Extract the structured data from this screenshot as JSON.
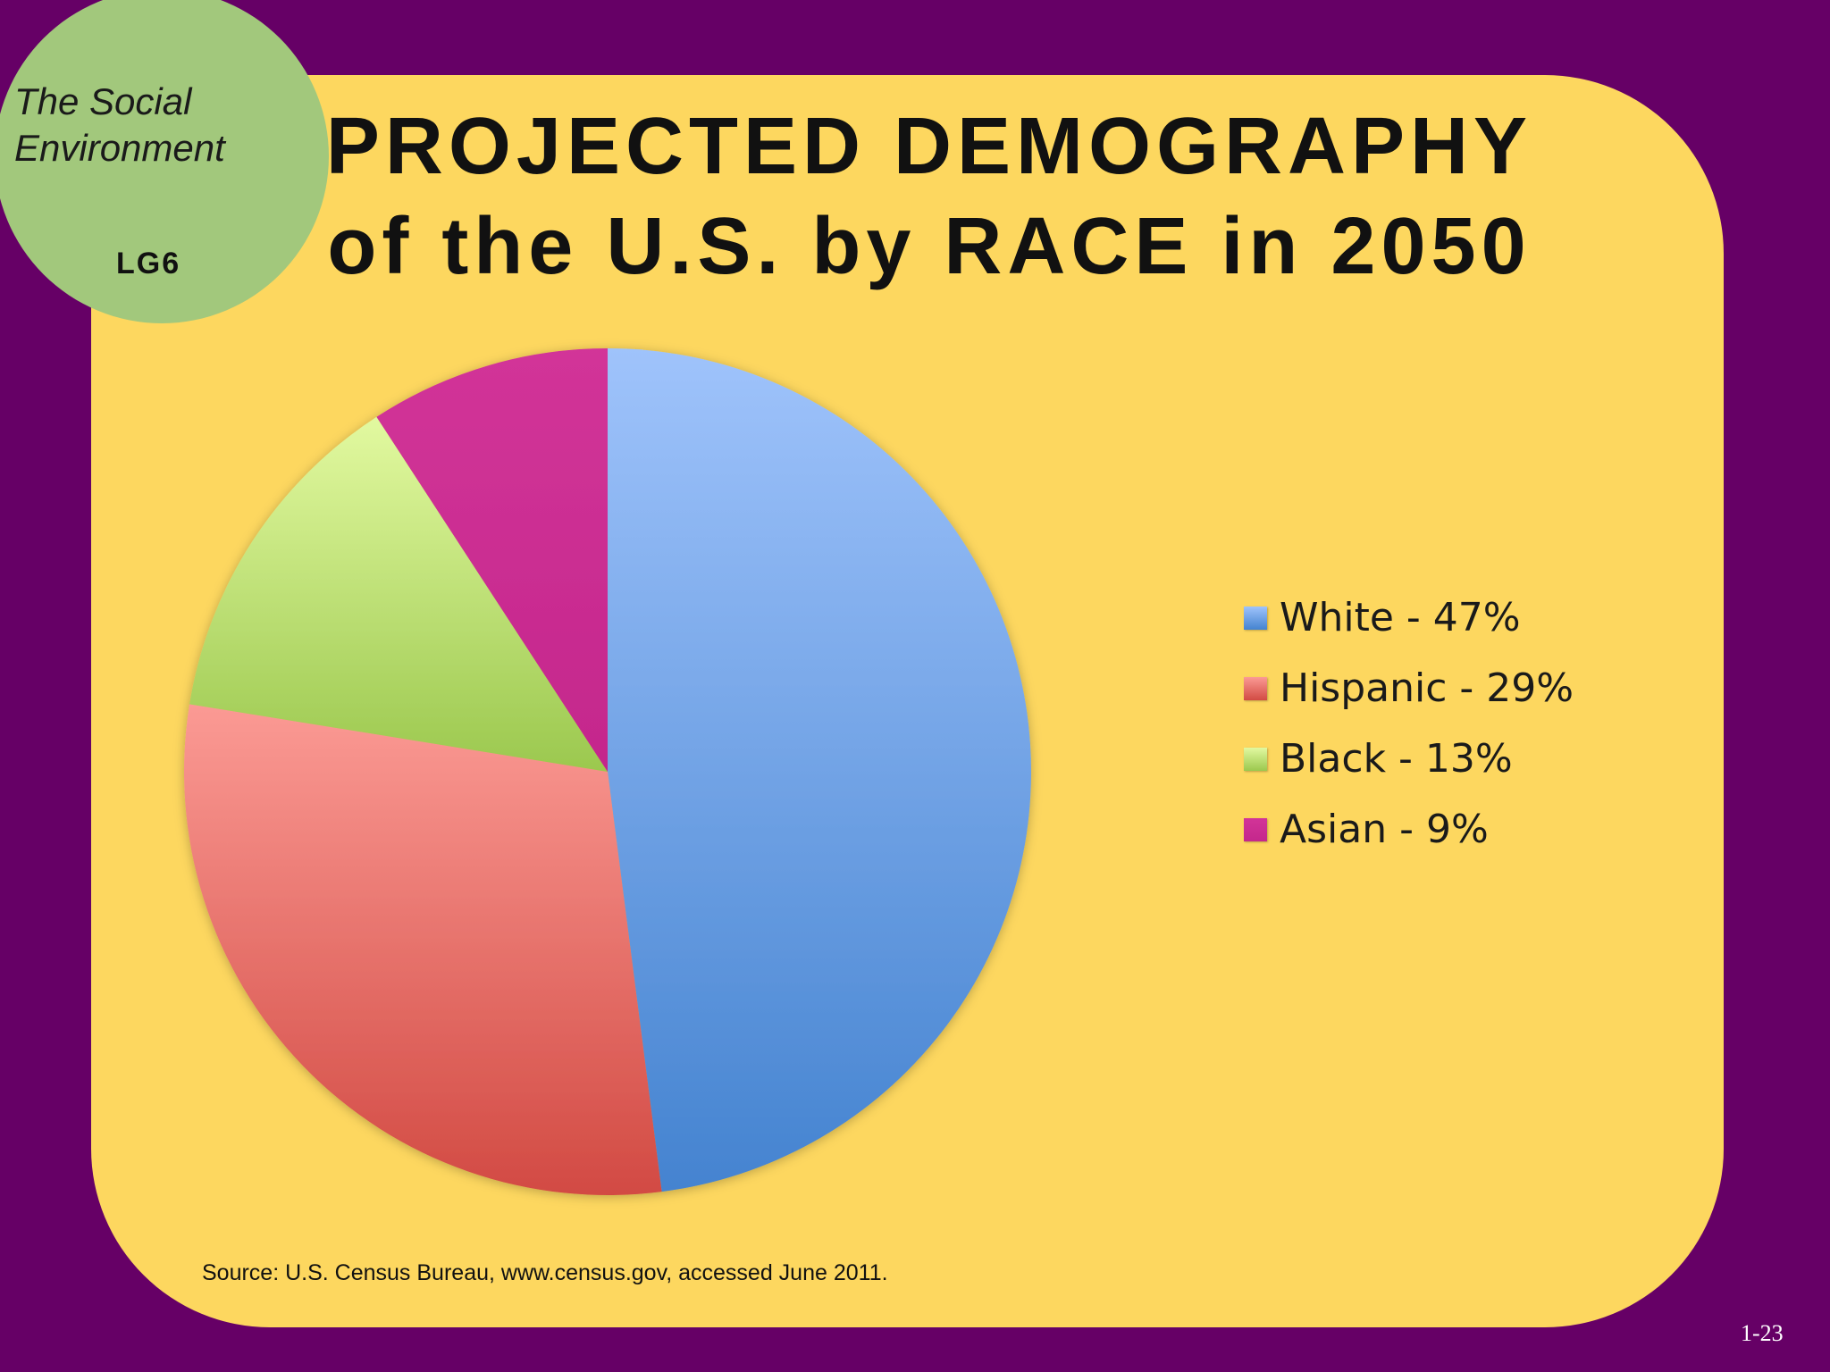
{
  "badge": {
    "title": "The Social\nEnvironment",
    "code": "LG6"
  },
  "slide": {
    "title_line1": "PROJECTED DEMOGRAPHY",
    "title_line2": "of the U.S. by RACE in 2050",
    "source": "Source: U.S. Census Bureau, www.census.gov, accessed June 2011.",
    "page_number": "1-23"
  },
  "colors": {
    "background": "#660066",
    "panel": "#fdd75f",
    "badge": "#a2c87c"
  },
  "chart_data": {
    "type": "pie",
    "title": "PROJECTED DEMOGRAPHY of the U.S. by RACE in 2050",
    "legend_position": "right",
    "slices": [
      {
        "label": "White - 47%",
        "value": 47,
        "color_light": "#9fc3fb",
        "color_dark": "#4483d0"
      },
      {
        "label": "Hispanic - 29%",
        "value": 29,
        "color_light": "#fb9a94",
        "color_dark": "#d24a43"
      },
      {
        "label": "Black - 13%",
        "value": 13,
        "color_light": "#e2f9a0",
        "color_dark": "#9bc84e"
      },
      {
        "label": "Asian - 9%",
        "value": 9,
        "color_light": "#d23498",
        "color_dark": "#c4278c"
      }
    ]
  }
}
